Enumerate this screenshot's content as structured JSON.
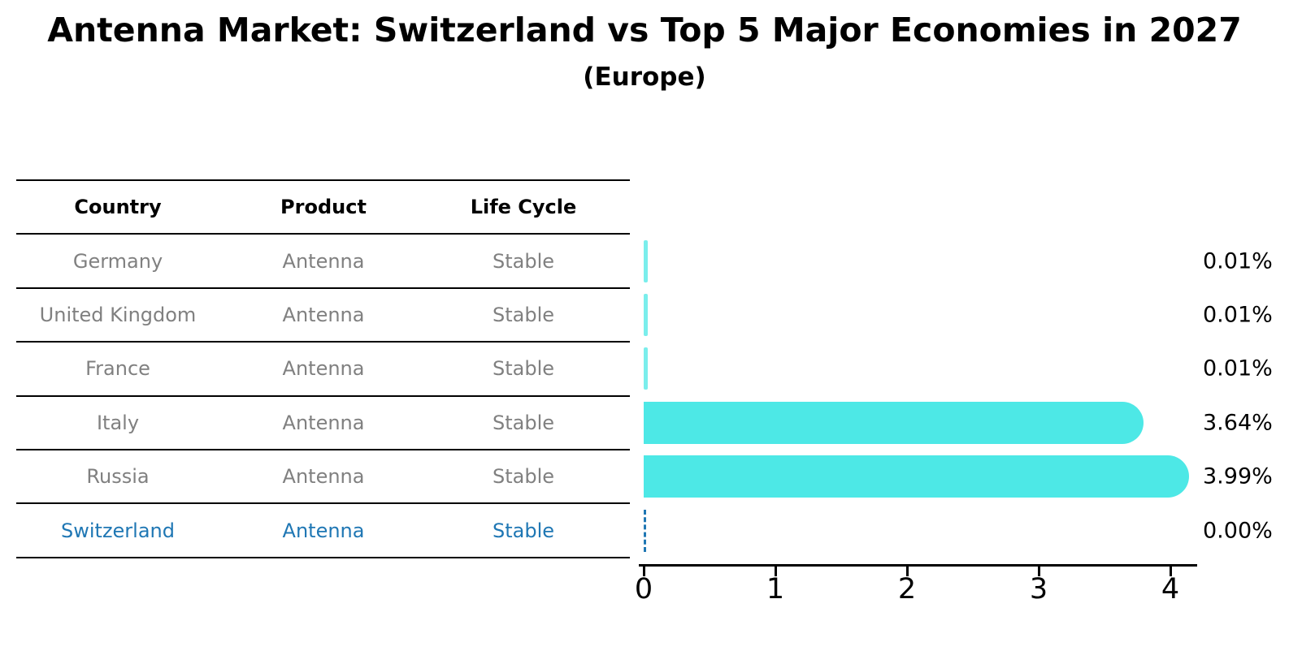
{
  "title": "Antenna Market: Switzerland vs Top 5 Major Economies in 2027",
  "subtitle": "(Europe)",
  "colors": {
    "bar": "#4DE8E6",
    "highlight_text": "#1f77b4",
    "row_text": "#808080",
    "header_text": "#000000",
    "line": "#000000"
  },
  "table": {
    "headers": [
      "Country",
      "Product",
      "Life Cycle"
    ],
    "rows": [
      {
        "country": "Germany",
        "product": "Antenna",
        "life_cycle": "Stable",
        "highlight": false
      },
      {
        "country": "United Kingdom",
        "product": "Antenna",
        "life_cycle": "Stable",
        "highlight": false
      },
      {
        "country": "France",
        "product": "Antenna",
        "life_cycle": "Stable",
        "highlight": false
      },
      {
        "country": "Italy",
        "product": "Antenna",
        "life_cycle": "Stable",
        "highlight": false
      },
      {
        "country": "Russia",
        "product": "Antenna",
        "life_cycle": "Stable",
        "highlight": false
      },
      {
        "country": "Switzerland",
        "product": "Antenna",
        "life_cycle": "Stable",
        "highlight": true
      }
    ]
  },
  "chart_data": {
    "type": "bar",
    "orientation": "horizontal",
    "title": "Antenna Market: Switzerland vs Top 5 Major Economies in 2027",
    "subtitle": "(Europe)",
    "categories": [
      "Germany",
      "United Kingdom",
      "France",
      "Italy",
      "Russia",
      "Switzerland"
    ],
    "values": [
      0.01,
      0.01,
      0.01,
      3.64,
      3.99,
      0.0
    ],
    "value_labels": [
      "0.01%",
      "0.01%",
      "0.01%",
      "3.64%",
      "3.99%",
      "0.00%"
    ],
    "xlabel": "",
    "ylabel": "",
    "xlim": [
      0,
      4.2
    ],
    "xticks": [
      0,
      1,
      2,
      3,
      4
    ],
    "grid": false,
    "legend": false,
    "highlight_index": 5,
    "highlight_style": "dashed-zero-line",
    "bar_color": "#4DE8E6"
  }
}
